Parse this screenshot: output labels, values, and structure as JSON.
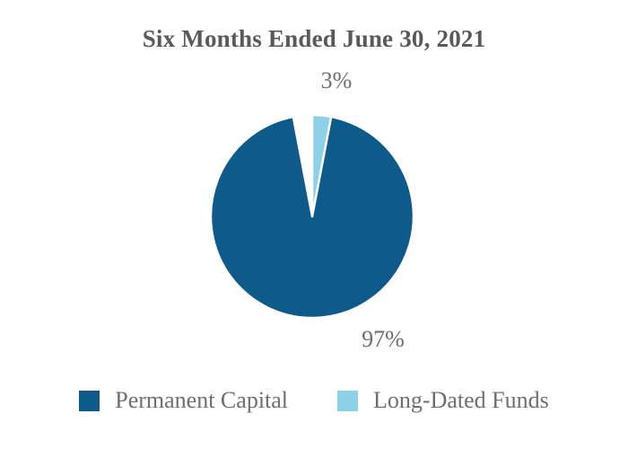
{
  "chart_data": {
    "type": "pie",
    "title": "Six Months Ended June 30, 2021",
    "slices": [
      {
        "label": "Permanent Capital",
        "value": 97,
        "display": "97%",
        "color": "#0E5A8A"
      },
      {
        "label": "Long-Dated Funds",
        "value": 3,
        "display": "3%",
        "color": "#8DD1E8"
      }
    ],
    "start_angle_deg": 0,
    "direction": "clockwise",
    "slice_border_color": "#FFFFFF",
    "legend_position": "bottom",
    "title_color": "#595959",
    "label_color": "#6D6E71",
    "background_color": "#FFFFFF"
  }
}
